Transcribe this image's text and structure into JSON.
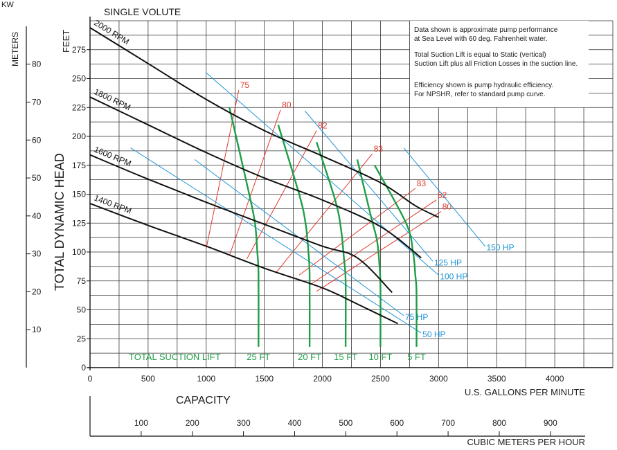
{
  "chart_data": {
    "type": "line",
    "title": "SINGLE VOLUTE",
    "xlabel": "U.S. GALLONS PER MINUTE",
    "ylabel": "TOTAL DYNAMIC HEAD",
    "y_unit": "FEET",
    "xlim": [
      0,
      4500
    ],
    "ylim": [
      0,
      300
    ],
    "x_ticks": [
      "0",
      "500",
      "1000",
      "1500",
      "2000",
      "2500",
      "3000",
      "3500",
      "4000"
    ],
    "y_ticks": [
      "0",
      "25",
      "50",
      "75",
      "100",
      "125",
      "150",
      "175",
      "200",
      "225",
      "250",
      "275"
    ],
    "grid": true,
    "secondary_y": {
      "unit": "METERS",
      "ticks": [
        "10",
        "20",
        "30",
        "40",
        "50",
        "60",
        "70",
        "80"
      ],
      "unit_top": "KW"
    },
    "secondary_x": {
      "label": "CAPACITY",
      "unit": "CUBIC METERS PER HOUR",
      "ticks": [
        "100",
        "200",
        "300",
        "400",
        "500",
        "600",
        "700",
        "800",
        "900"
      ]
    },
    "notes": [
      "Data shown is approximate pump performance",
      "at Sea Level with 60 deg. Fahrenheit water.",
      "Total Suction Lift is equal to Static (vertical)",
      "Suction Lift plus all Friction Losses in the suction line.",
      "Efficiency shown is pump hydraulic efficiency.",
      "For NPSHR, refer to standard pump curve."
    ],
    "rpm_curves": [
      {
        "name": "2000 RPM",
        "x": [
          0,
          500,
          1000,
          1500,
          2000,
          2500,
          2800,
          3000
        ],
        "y": [
          294,
          263,
          232,
          205,
          183,
          160,
          140,
          130
        ]
      },
      {
        "name": "1800 RPM",
        "x": [
          0,
          500,
          1000,
          1500,
          2000,
          2500,
          2850
        ],
        "y": [
          234,
          210,
          186,
          164,
          145,
          122,
          95
        ]
      },
      {
        "name": "1600 RPM",
        "x": [
          0,
          500,
          1000,
          1500,
          2000,
          2300,
          2600
        ],
        "y": [
          184,
          163,
          143,
          124,
          105,
          95,
          65
        ]
      },
      {
        "name": "1400 RPM",
        "x": [
          0,
          500,
          1000,
          1500,
          2000,
          2300,
          2650
        ],
        "y": [
          142,
          123,
          105,
          86,
          69,
          55,
          38
        ]
      }
    ],
    "hp_lines": [
      {
        "name": "150 HP",
        "x": [
          2700,
          3400
        ],
        "y": [
          190,
          105
        ]
      },
      {
        "name": "125 HP",
        "x": [
          1850,
          2950
        ],
        "y": [
          222,
          92
        ]
      },
      {
        "name": "100 HP",
        "x": [
          1000,
          3000
        ],
        "y": [
          255,
          80
        ]
      },
      {
        "name": "75 HP",
        "x": [
          900,
          2700
        ],
        "y": [
          180,
          45
        ]
      },
      {
        "name": "50 HP",
        "x": [
          350,
          2850
        ],
        "y": [
          190,
          30
        ]
      }
    ],
    "efficiency_lines": [
      {
        "name": "75",
        "x": [
          1000,
          1280
        ],
        "y": [
          103,
          240
        ]
      },
      {
        "name": "80",
        "x": [
          1200,
          1640
        ],
        "y": [
          97,
          223
        ]
      },
      {
        "name": "82",
        "x": [
          1350,
          1950
        ],
        "y": [
          94,
          205
        ]
      },
      {
        "name": "83",
        "x": [
          1600,
          2430
        ],
        "y": [
          82,
          185
        ]
      },
      {
        "name": "83",
        "x": [
          1800,
          2800
        ],
        "y": [
          80,
          155
        ]
      },
      {
        "name": "82",
        "x": [
          1900,
          2980
        ],
        "y": [
          72,
          145
        ]
      },
      {
        "name": "80",
        "x": [
          1950,
          3020
        ],
        "y": [
          66,
          135
        ]
      }
    ],
    "suction_lift_curves": [
      {
        "name": "25 FT",
        "x": [
          1200,
          1370,
          1420,
          1440,
          1450,
          1450
        ],
        "y": [
          225,
          150,
          125,
          100,
          80,
          18
        ]
      },
      {
        "name": "20 FT",
        "x": [
          1620,
          1800,
          1855,
          1880,
          1890,
          1890
        ],
        "y": [
          210,
          150,
          125,
          100,
          80,
          18
        ]
      },
      {
        "name": "15 FT",
        "x": [
          1950,
          2110,
          2160,
          2185,
          2200,
          2200
        ],
        "y": [
          195,
          145,
          120,
          95,
          75,
          18
        ]
      },
      {
        "name": "10 FT",
        "x": [
          2300,
          2420,
          2470,
          2490,
          2500,
          2500
        ],
        "y": [
          180,
          130,
          110,
          90,
          70,
          18
        ]
      },
      {
        "name": "5 FT",
        "x": [
          2450,
          2720,
          2780,
          2800,
          2810,
          2810
        ],
        "y": [
          175,
          125,
          100,
          80,
          65,
          18
        ]
      }
    ],
    "suction_lift_label": "TOTAL SUCTION LIFT",
    "colors": {
      "rpm": "#111111",
      "hp": "#1f95d6",
      "efficiency": "#e0382b",
      "suction": "#1e9e47",
      "grid": "#333333"
    }
  }
}
